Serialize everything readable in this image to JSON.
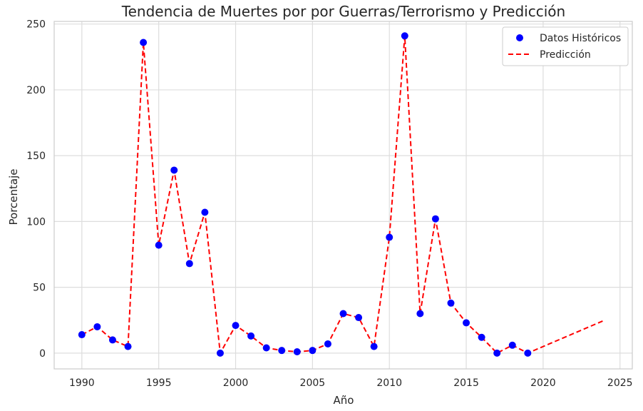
{
  "chart_data": {
    "type": "line",
    "title": "Tendencia de Muertes por por Guerras/Terrorismo y Predicción",
    "xlabel": "Año",
    "ylabel": "Porcentaje",
    "xlim": [
      1988.2,
      2025.8
    ],
    "ylim": [
      -12,
      252
    ],
    "xticks": [
      1990,
      1995,
      2000,
      2005,
      2010,
      2015,
      2020,
      2025
    ],
    "yticks": [
      0,
      50,
      100,
      150,
      200,
      250
    ],
    "grid": true,
    "legend_position": "top-right",
    "series": [
      {
        "name": "Datos Históricos",
        "kind": "scatter",
        "color": "#0000ff",
        "x": [
          1990,
          1991,
          1992,
          1993,
          1994,
          1995,
          1996,
          1997,
          1998,
          1999,
          2000,
          2001,
          2002,
          2003,
          2004,
          2005,
          2006,
          2007,
          2008,
          2009,
          2010,
          2011,
          2012,
          2013,
          2014,
          2015,
          2016,
          2017,
          2018,
          2019
        ],
        "y": [
          14,
          20,
          10,
          5,
          236,
          82,
          139,
          68,
          107,
          0,
          21,
          13,
          4,
          2,
          1,
          2,
          7,
          30,
          27,
          5,
          88,
          241,
          30,
          102,
          38,
          23,
          12,
          0,
          6,
          0
        ]
      },
      {
        "name": "Predicción",
        "kind": "line",
        "style": "dashed",
        "color": "#ff0000",
        "x": [
          1990,
          1991,
          1992,
          1993,
          1994,
          1995,
          1996,
          1997,
          1998,
          1999,
          2000,
          2001,
          2002,
          2003,
          2004,
          2005,
          2006,
          2007,
          2008,
          2009,
          2010,
          2011,
          2012,
          2013,
          2014,
          2015,
          2016,
          2017,
          2018,
          2019,
          2024
        ],
        "y": [
          14,
          20,
          10,
          5,
          236,
          82,
          139,
          68,
          107,
          0,
          21,
          13,
          4,
          2,
          1,
          2,
          7,
          30,
          27,
          5,
          88,
          241,
          30,
          102,
          38,
          23,
          12,
          0,
          6,
          0,
          25
        ]
      }
    ]
  }
}
